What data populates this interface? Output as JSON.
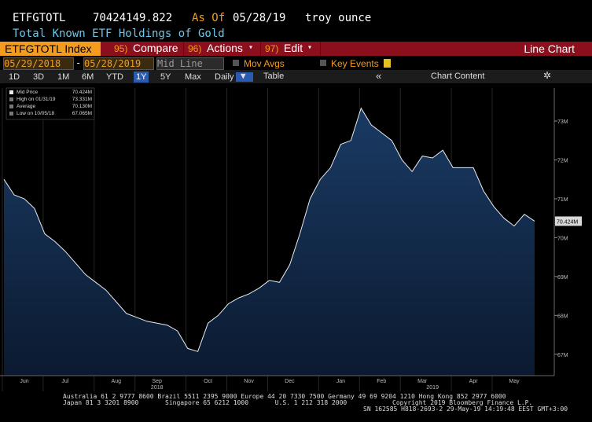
{
  "header": {
    "ticker": "ETFGTOTL",
    "value": "70424149.822",
    "as_of_label": "As Of",
    "date": "05/28/19",
    "unit": "troy ounce",
    "description": "Total Known ETF Holdings of Gold"
  },
  "menu": {
    "security": "ETFGTOTL Index",
    "items": [
      {
        "num": "95)",
        "label": "Compare"
      },
      {
        "num": "96)",
        "label": "Actions"
      },
      {
        "num": "97)",
        "label": "Edit"
      }
    ],
    "chart_type": "Line Chart"
  },
  "controls": {
    "start_date": "05/29/2018",
    "separator": "-",
    "end_date": "05/28/2019",
    "line_mode": "Mid Line",
    "mov_avgs": "Mov Avgs",
    "key_events": "Key Events"
  },
  "ranges": [
    "1D",
    "3D",
    "1M",
    "6M",
    "YTD",
    "1Y",
    "5Y",
    "Max"
  ],
  "selected_range": "1Y",
  "frequency": "Daily",
  "table": "Table",
  "chart_content": "Chart Content",
  "chart_data": {
    "type": "area",
    "color": "#e8ecf2",
    "fill": "#12294a",
    "categories": [
      null,
      null,
      "Jun",
      null,
      null,
      null,
      "Jul",
      null,
      null,
      null,
      null,
      "Aug",
      null,
      null,
      null,
      "Sep",
      null,
      null,
      null,
      null,
      "Oct",
      null,
      null,
      null,
      "Nov",
      null,
      null,
      null,
      "Dec",
      null,
      null,
      null,
      null,
      "Jan",
      null,
      null,
      null,
      "Feb",
      null,
      null,
      null,
      "Mar",
      null,
      null,
      null,
      null,
      "Apr",
      null,
      null,
      null,
      "May",
      null,
      null
    ],
    "year_labels": [
      {
        "label": "2018",
        "at": 15
      },
      {
        "label": "2019",
        "at": 42
      }
    ],
    "values": [
      71.5,
      71.1,
      71.0,
      70.75,
      70.1,
      69.9,
      69.65,
      69.35,
      69.05,
      68.85,
      68.65,
      68.35,
      68.05,
      67.95,
      67.85,
      67.8,
      67.75,
      67.6,
      67.15,
      67.07,
      67.8,
      68.0,
      68.3,
      68.45,
      68.55,
      68.7,
      68.9,
      68.85,
      69.3,
      70.1,
      71.0,
      71.5,
      71.8,
      72.4,
      72.5,
      73.33,
      72.9,
      72.7,
      72.5,
      72.0,
      71.7,
      72.1,
      72.05,
      72.25,
      71.8,
      71.8,
      71.8,
      71.2,
      70.8,
      70.5,
      70.3,
      70.6,
      70.424
    ],
    "ylim": [
      66.45,
      73.85
    ],
    "yticks": [
      {
        "value": 67,
        "label": "67M"
      },
      {
        "value": 68,
        "label": "68M"
      },
      {
        "value": 69,
        "label": "69M"
      },
      {
        "value": 70,
        "label": "70M"
      },
      {
        "value": 71,
        "label": "71M"
      },
      {
        "value": 72,
        "label": "72M"
      },
      {
        "value": 73,
        "label": "73M"
      }
    ],
    "last_value": {
      "value": 70.424,
      "label": "70.424M"
    },
    "legend": [
      {
        "label": "Mid Price",
        "value": "70.424M"
      },
      {
        "label": "High on 01/31/19",
        "value": "73.331M"
      },
      {
        "label": "Average",
        "value": "70.130M"
      },
      {
        "label": "Low on 10/05/18",
        "value": "67.065M"
      }
    ]
  },
  "footer": {
    "lines": [
      "Australia 61 2 9777 8600 Brazil 5511 2395 9000 Europe 44 20 7330 7500 Germany 49 69 9204 1210 Hong Kong 852 2977 6000",
      "Japan 81 3 3201 8900       Singapore 65 6212 1000       U.S. 1 212 318 2000            Copyright 2019 Bloomberg Finance L.P.",
      "SN 162585 H818-2693-2 29-May-19 14:19:48 EEST GMT+3:00"
    ]
  }
}
